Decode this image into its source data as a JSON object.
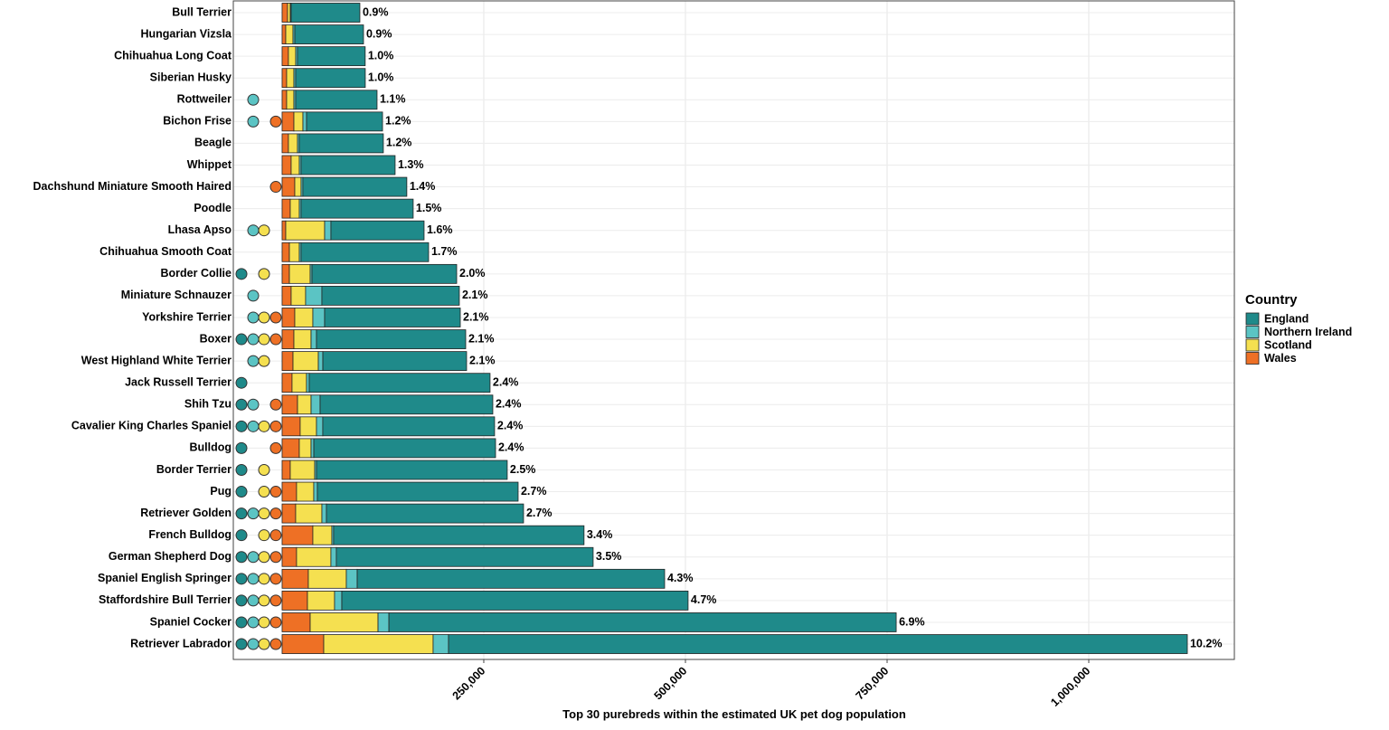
{
  "chart_data": {
    "type": "stacked-bar-horizontal",
    "x_label": "Top 30 purebreds within the estimated UK pet dog population",
    "legend_title": "Country",
    "legend_position": "right",
    "grid": true,
    "categories": [
      "Bull Terrier",
      "Hungarian Vizsla",
      "Chihuahua Long Coat",
      "Siberian Husky",
      "Rottweiler",
      "Bichon Frise",
      "Beagle",
      "Whippet",
      "Dachshund Miniature Smooth Haired",
      "Poodle",
      "Lhasa Apso",
      "Chihuahua Smooth Coat",
      "Border Collie",
      "Miniature Schnauzer",
      "Yorkshire Terrier",
      "Boxer",
      "West Highland White Terrier",
      "Jack Russell Terrier",
      "Shih Tzu",
      "Cavalier King Charles Spaniel",
      "Bulldog",
      "Border Terrier",
      "Pug",
      "Retriever Golden",
      "French Bulldog",
      "German Shepherd Dog",
      "Spaniel English Springer",
      "Staffordshire Bull Terrier",
      "Spaniel Cocker",
      "Retriever Labrador"
    ],
    "series": [
      {
        "name": "England",
        "color": "#1f8a8a",
        "values": [
          85200,
          85200,
          84000,
          86300,
          100900,
          94200,
          104300,
          116600,
          128900,
          139000,
          115500,
          158100,
          179400,
          170400,
          168200,
          185000,
          178200,
          224200,
          214100,
          213000,
          225300,
          236500,
          248900,
          244400,
          310500,
          318400,
          381100,
          429300,
          628900,
          915900
        ],
        "top": [
          false,
          false,
          false,
          false,
          false,
          false,
          false,
          false,
          false,
          false,
          false,
          false,
          true,
          false,
          false,
          true,
          false,
          true,
          true,
          true,
          true,
          true,
          true,
          true,
          true,
          true,
          true,
          true,
          true,
          true
        ]
      },
      {
        "name": "Northern Ireland",
        "color": "#5bc4c4",
        "values": [
          1100,
          2200,
          2200,
          2200,
          2200,
          4500,
          2200,
          2200,
          2200,
          2200,
          7800,
          2200,
          2200,
          20200,
          14600,
          6700,
          5600,
          3400,
          11200,
          7800,
          3400,
          2200,
          4500,
          5600,
          2200,
          6700,
          13500,
          9000,
          13500,
          19100
        ],
        "top": [
          false,
          false,
          false,
          false,
          true,
          true,
          false,
          false,
          false,
          false,
          true,
          false,
          false,
          true,
          true,
          true,
          true,
          false,
          true,
          true,
          false,
          false,
          false,
          true,
          false,
          true,
          true,
          true,
          true,
          true
        ]
      },
      {
        "name": "Scotland",
        "color": "#f5e050",
        "values": [
          3400,
          9000,
          9000,
          9000,
          9000,
          11200,
          11200,
          10100,
          7800,
          11200,
          48200,
          12300,
          25800,
          17900,
          22400,
          21300,
          31400,
          17900,
          16800,
          20200,
          14600,
          30300,
          21300,
          32500,
          23500,
          42600,
          47100,
          33600,
          84100,
          135600
        ],
        "top": [
          false,
          false,
          false,
          false,
          false,
          false,
          false,
          false,
          false,
          false,
          true,
          false,
          true,
          false,
          true,
          true,
          true,
          false,
          false,
          true,
          false,
          true,
          true,
          true,
          true,
          true,
          true,
          true,
          true,
          true
        ]
      },
      {
        "name": "Wales",
        "color": "#ee7025",
        "values": [
          6700,
          4500,
          7800,
          5600,
          5600,
          14600,
          7800,
          11200,
          15700,
          10100,
          4500,
          9000,
          9000,
          11200,
          15700,
          14600,
          13500,
          12300,
          19100,
          22400,
          21300,
          10100,
          17900,
          16800,
          38100,
          17900,
          32500,
          31400,
          34800,
          51600
        ],
        "top": [
          false,
          false,
          false,
          false,
          false,
          true,
          false,
          false,
          true,
          false,
          false,
          false,
          false,
          false,
          true,
          true,
          false,
          false,
          true,
          true,
          true,
          false,
          true,
          true,
          true,
          true,
          true,
          true,
          true,
          true
        ]
      }
    ],
    "share": {
      "values": [
        0.9,
        0.9,
        1.0,
        1.0,
        1.1,
        1.2,
        1.2,
        1.3,
        1.4,
        1.5,
        1.6,
        1.7,
        2.0,
        2.1,
        2.1,
        2.1,
        2.1,
        2.4,
        2.4,
        2.4,
        2.4,
        2.5,
        2.7,
        2.7,
        3.4,
        3.5,
        4.3,
        4.7,
        6.9,
        10.2
      ],
      "value_labels": [
        "0.9%",
        "0.9%",
        "1.0%",
        "1.0%",
        "1.1%",
        "1.2%",
        "1.2%",
        "1.3%",
        "1.4%",
        "1.5%",
        "1.6%",
        "1.7%",
        "2.0%",
        "2.1%",
        "2.1%",
        "2.1%",
        "2.1%",
        "2.4%",
        "2.4%",
        "2.4%",
        "2.4%",
        "2.5%",
        "2.7%",
        "2.7%",
        "3.4%",
        "3.5%",
        "4.3%",
        "4.7%",
        "6.9%",
        "10.2%"
      ]
    },
    "xlim": [
      -60500,
      1180500
    ],
    "xticks": [
      {
        "value": 250000,
        "label": "250,000"
      },
      {
        "value": 500000,
        "label": "500,000"
      },
      {
        "value": 750000,
        "label": "750,000"
      },
      {
        "value": 1000000,
        "label": "1,000,000"
      }
    ]
  }
}
